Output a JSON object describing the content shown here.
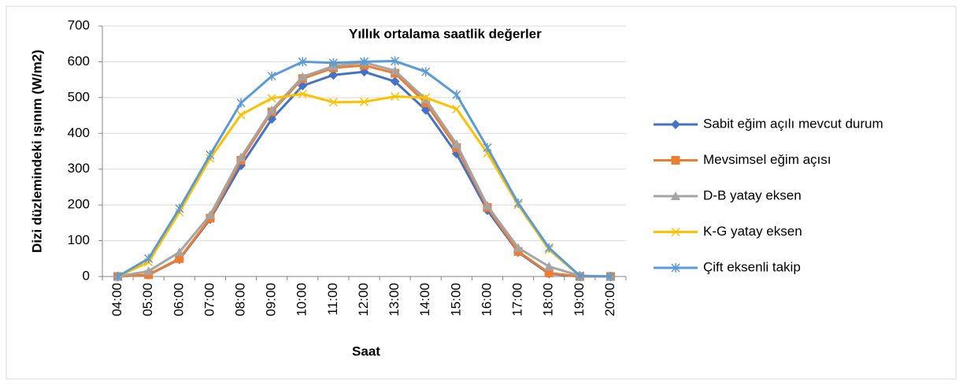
{
  "chart_data": {
    "type": "line",
    "title": "Yıllık ortalama saatlik değerler",
    "x_label": "Saat",
    "y_label": "Dizi düzlemindeki ışınım (W/m2)",
    "categories": [
      "04:00",
      "05:00",
      "06:00",
      "07:00",
      "08:00",
      "09:00",
      "10:00",
      "11:00",
      "12:00",
      "13:00",
      "14:00",
      "15:00",
      "16:00",
      "17:00",
      "18:00",
      "19:00",
      "20:00"
    ],
    "series": [
      {
        "name": "Sabit eğim açılı mevcut durum",
        "color": "#4472c4",
        "marker": "diamond",
        "values": [
          0,
          5,
          48,
          160,
          310,
          440,
          533,
          563,
          572,
          545,
          465,
          343,
          185,
          68,
          8,
          0,
          0
        ]
      },
      {
        "name": "Mevsimsel eğim açısı",
        "color": "#ed7d31",
        "marker": "square",
        "values": [
          0,
          5,
          50,
          163,
          325,
          460,
          553,
          583,
          590,
          568,
          485,
          360,
          193,
          70,
          10,
          0,
          0
        ]
      },
      {
        "name": "D-B yatay eksen",
        "color": "#a5a5a5",
        "marker": "triangle",
        "values": [
          0,
          15,
          68,
          172,
          333,
          465,
          558,
          588,
          598,
          575,
          495,
          370,
          198,
          80,
          28,
          2,
          0
        ]
      },
      {
        "name": "K-G yatay eksen",
        "color": "#ffc000",
        "marker": "x",
        "values": [
          0,
          40,
          180,
          330,
          452,
          498,
          510,
          487,
          488,
          503,
          500,
          468,
          345,
          200,
          75,
          2,
          0
        ]
      },
      {
        "name": "Çift eksenli takip",
        "color": "#5b9bd5",
        "marker": "asterisk",
        "values": [
          0,
          50,
          190,
          340,
          485,
          560,
          600,
          597,
          600,
          602,
          572,
          508,
          360,
          205,
          80,
          2,
          0
        ]
      }
    ],
    "ylim": [
      0,
      700
    ],
    "yticks": [
      0,
      100,
      200,
      300,
      400,
      500,
      600,
      700
    ],
    "grid": true,
    "legend": "right"
  }
}
